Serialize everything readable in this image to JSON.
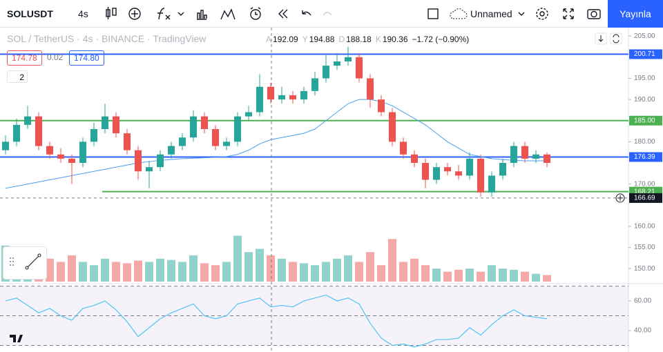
{
  "header": {
    "symbol": "SOLUSDT",
    "interval": "4s",
    "layout_name": "Unnamed",
    "publish": "Yayınla"
  },
  "legend": {
    "title": "SOL / TetherUS · 4s · BINANCE · TradingView",
    "ohlc": [
      {
        "label": "A",
        "value": "192.09"
      },
      {
        "label": "Y",
        "value": "194.88"
      },
      {
        "label": "D",
        "value": "188.18"
      },
      {
        "label": "K",
        "value": "190.36"
      }
    ],
    "change": "−1.72 (−0.90%)",
    "bid": "174.78",
    "spread": "0.02",
    "ask": "174.80",
    "collapsed_count": "2"
  },
  "chart_data": {
    "type": "candlestick",
    "ylim": [
      146.6,
      207
    ],
    "yticks": [
      {
        "value": 205,
        "label": "205.00"
      },
      {
        "value": 195,
        "label": "195.00"
      },
      {
        "value": 190,
        "label": "190.00"
      },
      {
        "value": 180,
        "label": "180.00"
      },
      {
        "value": 170,
        "label": "170.00"
      },
      {
        "value": 160,
        "label": "160.00"
      },
      {
        "value": 155,
        "label": "155.00"
      },
      {
        "value": 150,
        "label": "150.00"
      }
    ],
    "open": [
      178,
      180,
      184,
      186,
      179,
      177,
      176,
      175,
      180,
      183,
      186,
      182,
      178,
      173,
      174,
      177,
      179,
      181,
      186,
      183,
      179,
      180,
      186,
      187,
      193,
      190,
      191,
      190,
      192,
      195,
      198,
      199,
      200,
      195,
      190,
      187,
      180,
      177,
      175,
      171,
      174,
      173,
      172,
      176,
      168,
      172,
      175,
      179,
      176,
      177
    ],
    "high": [
      181.5,
      185.5,
      188.5,
      187,
      180,
      178.5,
      177,
      181,
      184.5,
      189,
      187,
      183,
      179,
      175.5,
      178,
      180,
      182,
      187.5,
      187,
      184,
      181,
      187,
      188.5,
      196,
      194,
      193,
      192,
      193,
      196.5,
      200.5,
      201,
      202.5,
      201,
      196,
      191,
      188,
      181,
      178,
      176,
      175,
      175,
      174.5,
      177.5,
      177,
      173,
      176,
      180,
      180,
      178,
      177.5
    ],
    "low": [
      177,
      179,
      183,
      178,
      176,
      175,
      170,
      174,
      179,
      182,
      181,
      177,
      171,
      169,
      173,
      176,
      178,
      180,
      182,
      178,
      178,
      179,
      185,
      186,
      189,
      189,
      189,
      189,
      191,
      194,
      197,
      198,
      194,
      188,
      186,
      179,
      176,
      174,
      169,
      170,
      172,
      171,
      171,
      167,
      167,
      171,
      174,
      175,
      175,
      174
    ],
    "close": [
      180,
      184,
      186,
      179,
      177,
      176,
      175,
      180,
      183,
      186,
      182,
      178,
      173,
      174,
      177,
      179,
      181,
      186,
      183,
      179,
      180,
      186,
      187,
      193,
      190,
      191,
      190,
      192,
      195,
      198,
      199,
      200,
      195,
      190,
      187,
      180,
      177,
      175,
      171,
      174,
      173,
      172,
      176,
      168,
      172,
      175,
      179,
      176,
      177,
      175
    ],
    "ma": [
      169,
      169.5,
      170,
      170.5,
      171,
      171.5,
      172,
      172.5,
      173,
      173.5,
      174,
      174.5,
      175,
      175.3,
      175.6,
      175.8,
      176,
      176.1,
      176.2,
      176.3,
      176.5,
      177,
      178,
      179.5,
      180.5,
      181,
      181.5,
      182,
      183,
      185,
      187,
      189,
      190,
      190,
      189.5,
      188.5,
      187,
      185.5,
      184,
      182,
      180,
      178.5,
      177,
      176.5,
      176,
      175.8,
      175.6,
      175.5,
      175.5,
      175.5
    ],
    "ma_color": "#4a9df0",
    "up_color": "#26a69a",
    "down_color": "#ef5350",
    "levels": [
      {
        "value": 200.71,
        "label": "200.71",
        "color": "#2962ff"
      },
      {
        "value": 185,
        "label": "185.00",
        "color": "#4caf50"
      },
      {
        "value": 176.39,
        "label": "176.39",
        "color": "#2962ff"
      },
      {
        "value": 168.21,
        "label": "168.21",
        "color": "#4caf50"
      }
    ],
    "crosshair": {
      "value": 166.69,
      "label": "166.69"
    },
    "volume": [
      55,
      50,
      40,
      45,
      35,
      30,
      40,
      30,
      25,
      35,
      30,
      28,
      32,
      30,
      35,
      33,
      30,
      40,
      28,
      25,
      30,
      70,
      45,
      50,
      40,
      35,
      30,
      28,
      25,
      30,
      35,
      40,
      30,
      45,
      25,
      65,
      30,
      35,
      25,
      20,
      15,
      18,
      20,
      15,
      25,
      20,
      18,
      15,
      12,
      10
    ],
    "vlim": [
      0,
      100
    ]
  },
  "rsi": {
    "type": "line",
    "color": "#4fc3f7",
    "ylim": [
      25.6,
      71.2
    ],
    "yticks": [
      {
        "value": 60,
        "label": "60.00"
      },
      {
        "value": 40,
        "label": "40.00"
      }
    ],
    "bands": [
      70,
      50,
      30
    ],
    "values": [
      60,
      62,
      57,
      52,
      55,
      50,
      47,
      55,
      57,
      60,
      54,
      46,
      36,
      42,
      48,
      52,
      55,
      58,
      50,
      48,
      50,
      58,
      60,
      62,
      56,
      57,
      56,
      60,
      62,
      64,
      60,
      62,
      58,
      45,
      35,
      30,
      31,
      29,
      31,
      34,
      34,
      35,
      42,
      37,
      44,
      50,
      54,
      50,
      49,
      48
    ]
  }
}
